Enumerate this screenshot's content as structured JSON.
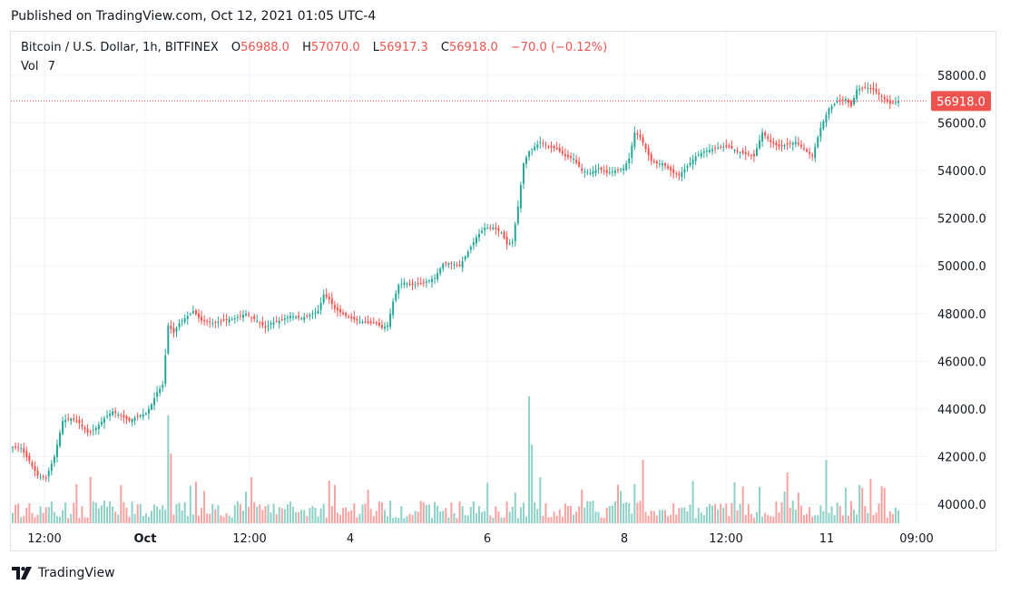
{
  "published": "Published on TradingView.com, Oct 12, 2021 01:05 UTC-4",
  "legend": {
    "symbol": "Bitcoin / U.S. Dollar, 1h, BITFINEX",
    "o_label": "O",
    "o_value": "56988.0",
    "h_label": "H",
    "h_value": "57070.0",
    "l_label": "L",
    "l_value": "56917.3",
    "c_label": "C",
    "c_value": "56918.0",
    "change": "−70.0 (−0.12%)"
  },
  "volume": {
    "label": "Vol",
    "value": "7"
  },
  "price_tag": "56918.0",
  "footer": {
    "brand": "TradingView"
  },
  "colors": {
    "up": "#26a69a",
    "down": "#ef5350",
    "vol_up": "#8fd0c8",
    "vol_down": "#f5a3a1",
    "grid": "#f0f3fa",
    "axis_text": "#131722"
  },
  "chart_data": {
    "type": "candlestick",
    "title": "Bitcoin / U.S. Dollar, 1h, BITFINEX",
    "y_ticks": [
      40000,
      42000,
      44000,
      46000,
      48000,
      50000,
      52000,
      54000,
      56000,
      58000
    ],
    "y_tick_labels": [
      "40000.0",
      "42000.0",
      "44000.0",
      "46000.0",
      "48000.0",
      "50000.0",
      "52000.0",
      "54000.0",
      "56000.0",
      "58000.0"
    ],
    "ylim": [
      39300,
      59300
    ],
    "x_tick_labels": [
      "12:00",
      "Oct",
      "12:00",
      "4",
      "6",
      "8",
      "12:00",
      "11",
      "09:00"
    ],
    "last_price": 56918.0,
    "price_path": [
      [
        0,
        42400
      ],
      [
        3,
        42350
      ],
      [
        6,
        41800
      ],
      [
        9,
        41200
      ],
      [
        12,
        41100
      ],
      [
        15,
        42000
      ],
      [
        18,
        43500
      ],
      [
        21,
        43600
      ],
      [
        24,
        43400
      ],
      [
        27,
        43000
      ],
      [
        30,
        43200
      ],
      [
        33,
        43600
      ],
      [
        36,
        43900
      ],
      [
        39,
        43700
      ],
      [
        42,
        43500
      ],
      [
        45,
        43700
      ],
      [
        48,
        43800
      ],
      [
        50,
        44200
      ],
      [
        52,
        44700
      ],
      [
        54,
        45000
      ],
      [
        56,
        47500
      ],
      [
        58,
        47200
      ],
      [
        60,
        47600
      ],
      [
        62,
        47800
      ],
      [
        65,
        48100
      ],
      [
        68,
        47700
      ],
      [
        72,
        47600
      ],
      [
        76,
        47700
      ],
      [
        80,
        47800
      ],
      [
        84,
        48000
      ],
      [
        88,
        47700
      ],
      [
        91,
        47400
      ],
      [
        93,
        47600
      ],
      [
        96,
        47700
      ],
      [
        100,
        47900
      ],
      [
        104,
        47800
      ],
      [
        108,
        48000
      ],
      [
        110,
        48100
      ],
      [
        112,
        48800
      ],
      [
        114,
        48600
      ],
      [
        116,
        48200
      ],
      [
        120,
        47900
      ],
      [
        124,
        47700
      ],
      [
        128,
        47600
      ],
      [
        131,
        47600
      ],
      [
        133,
        47400
      ],
      [
        135,
        47500
      ],
      [
        137,
        48500
      ],
      [
        139,
        49200
      ],
      [
        141,
        49300
      ],
      [
        144,
        49200
      ],
      [
        148,
        49300
      ],
      [
        152,
        49500
      ],
      [
        155,
        50100
      ],
      [
        158,
        50100
      ],
      [
        161,
        50000
      ],
      [
        164,
        50600
      ],
      [
        167,
        51200
      ],
      [
        170,
        51600
      ],
      [
        173,
        51600
      ],
      [
        176,
        51400
      ],
      [
        178,
        50900
      ],
      [
        180,
        51000
      ],
      [
        182,
        52500
      ],
      [
        184,
        54300
      ],
      [
        186,
        54800
      ],
      [
        188,
        55000
      ],
      [
        190,
        55200
      ],
      [
        193,
        55000
      ],
      [
        196,
        54900
      ],
      [
        199,
        54600
      ],
      [
        202,
        54500
      ],
      [
        205,
        54000
      ],
      [
        208,
        53900
      ],
      [
        211,
        54100
      ],
      [
        214,
        53900
      ],
      [
        217,
        54000
      ],
      [
        220,
        54100
      ],
      [
        222,
        54500
      ],
      [
        224,
        55600
      ],
      [
        226,
        55400
      ],
      [
        228,
        54900
      ],
      [
        230,
        54400
      ],
      [
        232,
        54300
      ],
      [
        234,
        54300
      ],
      [
        236,
        54100
      ],
      [
        238,
        53900
      ],
      [
        240,
        53800
      ],
      [
        243,
        54200
      ],
      [
        246,
        54600
      ],
      [
        249,
        54800
      ],
      [
        252,
        54900
      ],
      [
        255,
        55000
      ],
      [
        258,
        55000
      ],
      [
        261,
        54800
      ],
      [
        264,
        54700
      ],
      [
        267,
        54600
      ],
      [
        270,
        55600
      ],
      [
        273,
        55200
      ],
      [
        276,
        55000
      ],
      [
        279,
        55100
      ],
      [
        282,
        55200
      ],
      [
        285,
        54900
      ],
      [
        288,
        54600
      ],
      [
        291,
        55800
      ],
      [
        294,
        56600
      ],
      [
        297,
        56900
      ],
      [
        300,
        57000
      ],
      [
        302,
        56700
      ],
      [
        304,
        57400
      ],
      [
        307,
        57500
      ],
      [
        310,
        57400
      ],
      [
        313,
        57100
      ],
      [
        316,
        56800
      ],
      [
        319,
        56918
      ]
    ],
    "volume_highlights": [
      [
        56,
        0.85
      ],
      [
        57,
        0.55
      ],
      [
        186,
        1.0
      ],
      [
        187,
        0.62
      ],
      [
        227,
        0.5
      ],
      [
        279,
        0.4
      ],
      [
        293,
        0.5
      ]
    ]
  }
}
